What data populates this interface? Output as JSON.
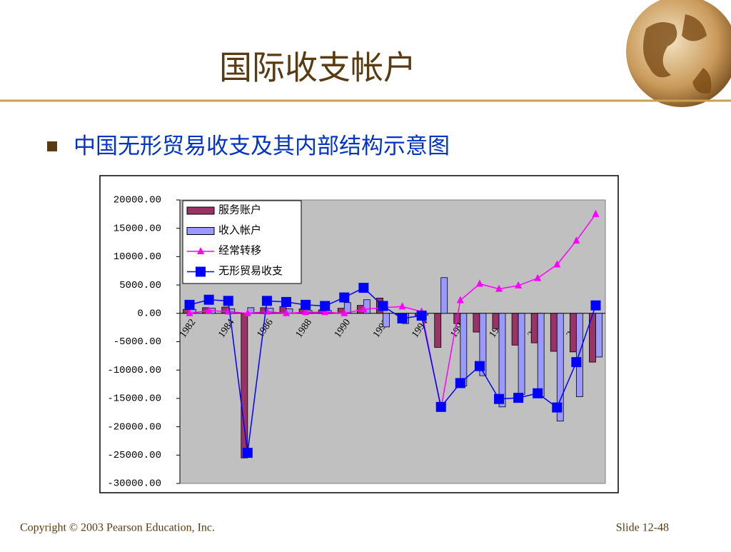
{
  "title": "国际收支帐户",
  "bullet": "中国无形贸易收支及其内部结构示意图",
  "footer": {
    "copyright": "Copyright © 2003 Pearson Education, Inc.",
    "slide": "Slide 12-48"
  },
  "chart_data": {
    "type": "bar",
    "categories": [
      "1982",
      null,
      "1984",
      null,
      "1986",
      null,
      "1988",
      null,
      "1990",
      null,
      "1992",
      null,
      "1994",
      null,
      "1996",
      null,
      "1998",
      null,
      "2000",
      null,
      "2002",
      null
    ],
    "series": [
      {
        "name": "服务账户",
        "type": "bar",
        "color": "#993366",
        "values": [
          700,
          1000,
          1100,
          -25500,
          1000,
          1200,
          800,
          600,
          900,
          1400,
          2700,
          -300,
          -400,
          -6000,
          -1800,
          -3300,
          -2700,
          -5600,
          -5200,
          -6700,
          -6800,
          -8600
        ]
      },
      {
        "name": "收入帐户",
        "type": "bar",
        "color": "#9999ff",
        "values": [
          700,
          900,
          800,
          1000,
          900,
          800,
          500,
          500,
          1900,
          2400,
          -2400,
          -1800,
          -300,
          6300,
          -12800,
          -11000,
          -16500,
          -14300,
          -14700,
          -19000,
          -14700,
          -7700
        ]
      },
      {
        "name": "经常转移",
        "type": "line",
        "marker": "triangle",
        "color": "#ff00ff",
        "values": [
          0,
          500,
          300,
          0,
          300,
          0,
          200,
          200,
          0,
          700,
          1000,
          1200,
          300,
          -16800,
          2300,
          5200,
          4300,
          4900,
          6200,
          8600,
          12800,
          17500
        ]
      },
      {
        "name": "无形贸易收支",
        "type": "line",
        "marker": "square",
        "color": "#0000ff",
        "values": [
          1500,
          2400,
          2200,
          -24600,
          2200,
          2000,
          1500,
          1300,
          2800,
          4500,
          1300,
          -900,
          -400,
          -16500,
          -12300,
          -9300,
          -15100,
          -14900,
          -14100,
          -16600,
          -8600,
          1400
        ]
      }
    ],
    "ylim": [
      -30000,
      20000
    ],
    "yticks": [
      {
        "value": 20000,
        "label": "20000.00"
      },
      {
        "value": 15000,
        "label": "15000.00"
      },
      {
        "value": 10000,
        "label": "10000.00"
      },
      {
        "value": 5000,
        "label": "5000.00"
      },
      {
        "value": 0,
        "label": "0.00"
      },
      {
        "value": -5000,
        "label": "-5000.00"
      },
      {
        "value": -10000,
        "label": "-10000.00"
      },
      {
        "value": -15000,
        "label": "-15000.00"
      },
      {
        "value": -20000,
        "label": "-20000.00"
      },
      {
        "value": -25000,
        "label": "-25000.00"
      },
      {
        "value": -30000,
        "label": "-30000.00"
      }
    ],
    "legend": "upper left"
  }
}
